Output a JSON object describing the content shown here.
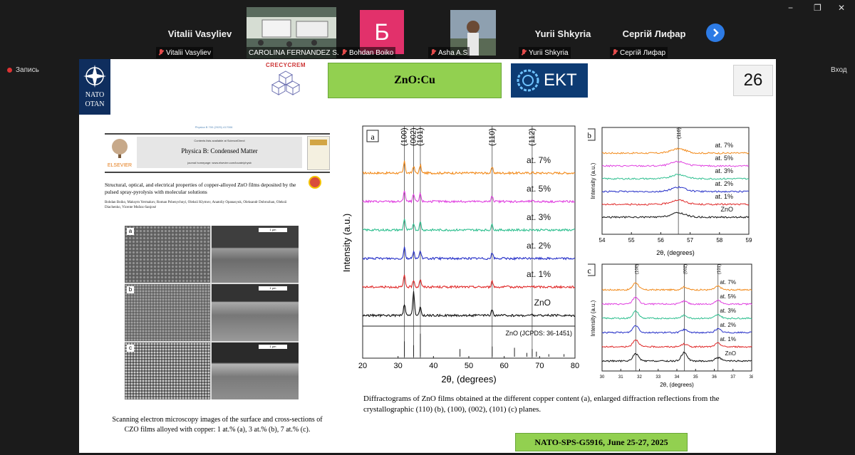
{
  "window": {
    "minimize": "−",
    "restore": "❐",
    "close": "✕"
  },
  "participants": [
    {
      "name": "Vitalii Vasyliev",
      "label": "Vitalii Vasyliev"
    },
    {
      "name": "",
      "label": "CAROLINA FERNANDEZ S..."
    },
    {
      "name": "Б",
      "label": "Bohdan Boiko"
    },
    {
      "name": "",
      "label": "Asha A.S"
    },
    {
      "name": "Yurii Shkyria",
      "label": "Yurii Shkyria"
    },
    {
      "name": "Сергій Лифар",
      "label": "Сергій Лифар"
    }
  ],
  "record_label": "Запись",
  "login_label": "Вход",
  "slide": {
    "logo_nato": "NATO\nOTAN",
    "logo_crecycrem": "CRECYCREM",
    "title": "ZnO:Cu",
    "logo_ekt": "EKT",
    "page_number": "26",
    "paper": {
      "header_small": "Physica B 700 (2025) 417006",
      "contents": "Contents lists available at ScienceDirect",
      "journal": "Physica B: Condensed Matter",
      "homepage": "journal homepage: www.elsevier.com/locate/physb",
      "publisher": "ELSEVIER",
      "title": "Structural, optical, and electrical properties of copper-alloyed ZnO films deposited by the pulsed spray-pyrolysis with molecular solutions",
      "authors": "Bohdan Boiko, Maksym Yermakov, Roman Pshenychnyi, Oleksii Klymov, Anatoliy Opanasyuk, Oleksandr Dobrozhan, Oleksii Diachenko, Vicente Muñoz-Sanjosé"
    },
    "sem": {
      "panels": [
        "a",
        "b",
        "c"
      ],
      "scale_label": "1 µm",
      "caption": "Scanning electron microscopy images of the surface and cross-sections of CZO films alloyed with copper: 1 at.% (a), 3 at.% (b), 7 at.% (c)."
    },
    "xrd_caption": "Diffractograms of ZnO films obtained at the different copper content (a), enlarged diffraction reflections from the crystallographic (110) (b), (100), (002), (101) (c) planes.",
    "footer": "NATO-SPS-G5916, June 25-27, 2025"
  },
  "chart_data": [
    {
      "type": "line",
      "panel": "a",
      "xlabel": "2θ, (degrees)",
      "ylabel": "Intensity (a.u.)",
      "xlim": [
        20,
        80
      ],
      "xticks": [
        20,
        30,
        40,
        50,
        60,
        70,
        80
      ],
      "peak_labels": [
        {
          "label": "(100)",
          "x": 31.8
        },
        {
          "label": "(002)",
          "x": 34.4
        },
        {
          "label": "(101)",
          "x": 36.3
        },
        {
          "label": "(110)",
          "x": 56.6
        },
        {
          "label": "(112)",
          "x": 67.9
        }
      ],
      "series": [
        {
          "name": "at. 7%",
          "color": "#f28a1a"
        },
        {
          "name": "at. 5%",
          "color": "#e040e0"
        },
        {
          "name": "at. 3%",
          "color": "#2ebf8f"
        },
        {
          "name": "at. 2%",
          "color": "#2630c8"
        },
        {
          "name": "at. 1%",
          "color": "#e02828"
        },
        {
          "name": "ZnO",
          "color": "#111111"
        }
      ],
      "reference_label": "ZnO (JCPDS: 36-1451)",
      "reference_lines": [
        {
          "x": 31.8,
          "h": 0.6
        },
        {
          "x": 34.4,
          "h": 0.45
        },
        {
          "x": 36.3,
          "h": 0.9
        },
        {
          "x": 47.5,
          "h": 0.3
        },
        {
          "x": 56.6,
          "h": 0.4
        },
        {
          "x": 62.9,
          "h": 0.35
        },
        {
          "x": 66.4,
          "h": 0.15
        },
        {
          "x": 67.9,
          "h": 0.3
        },
        {
          "x": 69.1,
          "h": 0.2
        },
        {
          "x": 72.6,
          "h": 0.1
        },
        {
          "x": 76.9,
          "h": 0.1
        }
      ]
    },
    {
      "type": "line",
      "panel": "b",
      "xlabel": "2θ, (degrees)",
      "ylabel": "Intensity (a.u.)",
      "xlim": [
        54,
        59
      ],
      "xticks": [
        54,
        55,
        56,
        57,
        58,
        59
      ],
      "peak_labels": [
        {
          "label": "(110)",
          "x": 56.6
        }
      ],
      "series": [
        {
          "name": "at. 7%",
          "color": "#f28a1a"
        },
        {
          "name": "at. 5%",
          "color": "#e040e0"
        },
        {
          "name": "at. 3%",
          "color": "#2ebf8f"
        },
        {
          "name": "at. 2%",
          "color": "#2630c8"
        },
        {
          "name": "at. 1%",
          "color": "#e02828"
        },
        {
          "name": "ZnO",
          "color": "#111111"
        }
      ]
    },
    {
      "type": "line",
      "panel": "c",
      "xlabel": "2θ, (degrees)",
      "ylabel": "Intensity (a.u.)",
      "xlim": [
        30,
        38
      ],
      "xticks": [
        30,
        31,
        32,
        33,
        34,
        35,
        36,
        37,
        38
      ],
      "xtick_labels": [
        "30",
        "31",
        "32",
        "33",
        "34",
        "35",
        "36",
        "37",
        "38"
      ],
      "peak_labels": [
        {
          "label": "(100)",
          "x": 31.8
        },
        {
          "label": "(002)",
          "x": 34.4
        },
        {
          "label": "(101)",
          "x": 36.2
        }
      ],
      "series": [
        {
          "name": "at. 7%",
          "color": "#f28a1a"
        },
        {
          "name": "at. 5%",
          "color": "#e040e0"
        },
        {
          "name": "at. 3%",
          "color": "#2ebf8f"
        },
        {
          "name": "at. 2%",
          "color": "#2630c8"
        },
        {
          "name": "at. 1%",
          "color": "#e02828"
        },
        {
          "name": "ZnO",
          "color": "#111111"
        }
      ]
    }
  ]
}
